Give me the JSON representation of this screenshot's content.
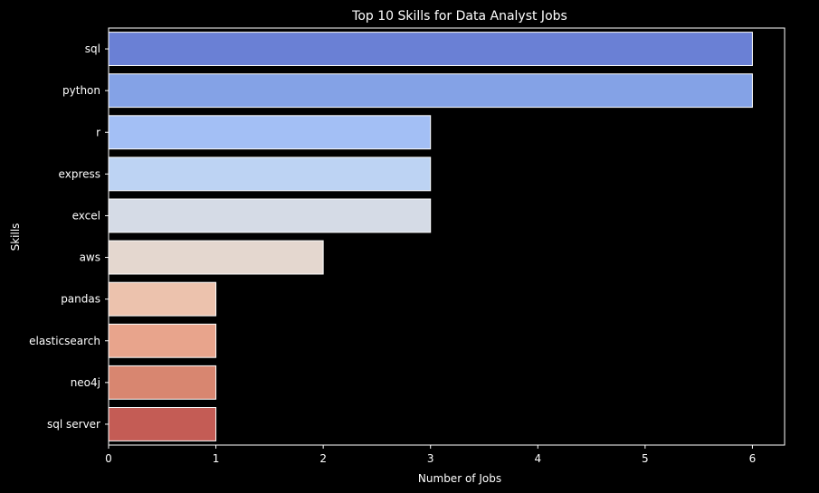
{
  "chart_data": {
    "type": "bar",
    "orientation": "horizontal",
    "title": "Top 10 Skills for Data Analyst Jobs",
    "xlabel": "Number of Jobs",
    "ylabel": "Skills",
    "categories": [
      "sql",
      "python",
      "r",
      "express",
      "excel",
      "aws",
      "pandas",
      "elasticsearch",
      "neo4j",
      "sql server"
    ],
    "values": [
      6,
      6,
      3,
      3,
      3,
      2,
      1,
      1,
      1,
      1
    ],
    "colors": [
      "#6a80d5",
      "#84a2e6",
      "#a3bff5",
      "#bdd3f3",
      "#d5dbe6",
      "#e4d7cf",
      "#ecc2ad",
      "#e8a48c",
      "#d88670",
      "#c45c55"
    ],
    "xlim": [
      0,
      6.3
    ],
    "xticks": [
      0,
      1,
      2,
      3,
      4,
      5,
      6
    ],
    "grid": false
  }
}
